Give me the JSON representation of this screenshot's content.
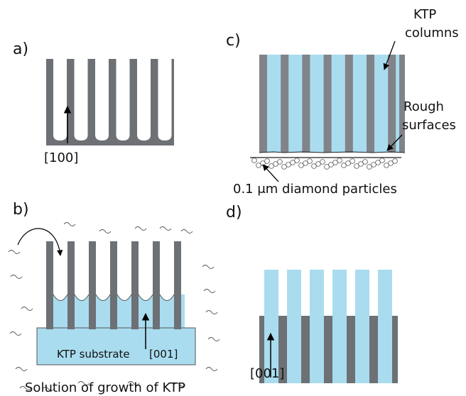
{
  "panels": [
    {
      "label": "a)",
      "direction": "[100]"
    },
    {
      "label": "b)",
      "substrate": "KTP substrate",
      "direction": "[001]",
      "caption": "Solution of growth of KTP"
    },
    {
      "label": "c)",
      "columns": [
        "KTP",
        "columns"
      ],
      "surfaces": [
        "Rough",
        "surfaces"
      ],
      "particles": "0.1 μm diamond particles"
    },
    {
      "label": "d)",
      "direction": "[001]"
    }
  ]
}
